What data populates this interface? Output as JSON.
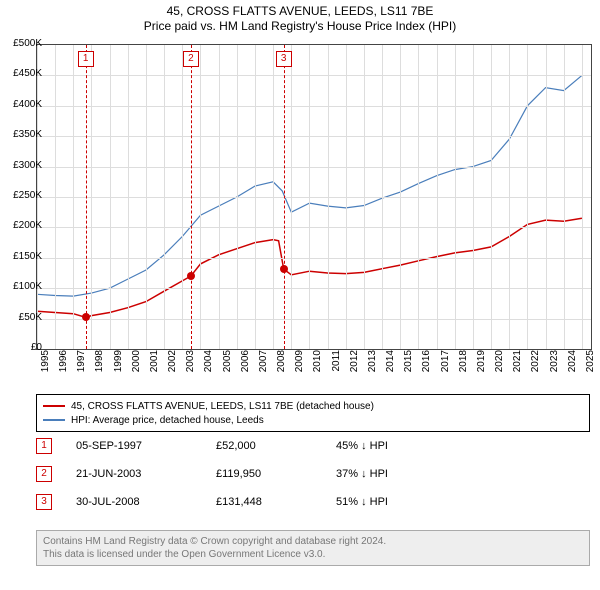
{
  "title": "45, CROSS FLATTS AVENUE, LEEDS, LS11 7BE",
  "subtitle": "Price paid vs. HM Land Registry's House Price Index (HPI)",
  "chart": {
    "type": "line",
    "background_color": "#ffffff",
    "grid_color": "#dddddd",
    "border_color": "#444444",
    "xlim": [
      1995,
      2025.5
    ],
    "ylim": [
      0,
      500000
    ],
    "ytick_step": 50000,
    "ytick_labels": [
      "£0",
      "£50K",
      "£100K",
      "£150K",
      "£200K",
      "£250K",
      "£300K",
      "£350K",
      "£400K",
      "£450K",
      "£500K"
    ],
    "xticks": [
      1995,
      1996,
      1997,
      1998,
      1999,
      2000,
      2001,
      2002,
      2003,
      2004,
      2005,
      2006,
      2007,
      2008,
      2009,
      2010,
      2011,
      2012,
      2013,
      2014,
      2015,
      2016,
      2017,
      2018,
      2019,
      2020,
      2021,
      2022,
      2023,
      2024,
      2025
    ],
    "label_fontsize": 10,
    "series": [
      {
        "name": "property",
        "label": "45, CROSS FLATTS AVENUE, LEEDS, LS11 7BE (detached house)",
        "color": "#cc0000",
        "line_width": 1.5,
        "points": [
          [
            1995,
            62000
          ],
          [
            1996,
            60000
          ],
          [
            1997,
            58000
          ],
          [
            1997.68,
            52000
          ],
          [
            1998,
            55000
          ],
          [
            1999,
            60000
          ],
          [
            2000,
            68000
          ],
          [
            2001,
            78000
          ],
          [
            2002,
            95000
          ],
          [
            2003,
            112000
          ],
          [
            2003.47,
            119950
          ],
          [
            2004,
            140000
          ],
          [
            2005,
            155000
          ],
          [
            2006,
            165000
          ],
          [
            2007,
            175000
          ],
          [
            2008,
            180000
          ],
          [
            2008.3,
            178000
          ],
          [
            2008.58,
            131448
          ],
          [
            2009,
            122000
          ],
          [
            2010,
            128000
          ],
          [
            2011,
            125000
          ],
          [
            2012,
            124000
          ],
          [
            2013,
            126000
          ],
          [
            2014,
            132000
          ],
          [
            2015,
            138000
          ],
          [
            2016,
            145000
          ],
          [
            2017,
            152000
          ],
          [
            2018,
            158000
          ],
          [
            2019,
            162000
          ],
          [
            2020,
            168000
          ],
          [
            2021,
            185000
          ],
          [
            2022,
            205000
          ],
          [
            2023,
            212000
          ],
          [
            2024,
            210000
          ],
          [
            2025,
            215000
          ]
        ]
      },
      {
        "name": "hpi",
        "label": "HPI: Average price, detached house, Leeds",
        "color": "#4a7ebb",
        "line_width": 1.2,
        "points": [
          [
            1995,
            90000
          ],
          [
            1996,
            88000
          ],
          [
            1997,
            87000
          ],
          [
            1998,
            92000
          ],
          [
            1999,
            100000
          ],
          [
            2000,
            115000
          ],
          [
            2001,
            130000
          ],
          [
            2002,
            155000
          ],
          [
            2003,
            185000
          ],
          [
            2004,
            220000
          ],
          [
            2005,
            235000
          ],
          [
            2006,
            250000
          ],
          [
            2007,
            268000
          ],
          [
            2008,
            275000
          ],
          [
            2008.5,
            260000
          ],
          [
            2009,
            225000
          ],
          [
            2010,
            240000
          ],
          [
            2011,
            235000
          ],
          [
            2012,
            232000
          ],
          [
            2013,
            236000
          ],
          [
            2014,
            248000
          ],
          [
            2015,
            258000
          ],
          [
            2016,
            272000
          ],
          [
            2017,
            285000
          ],
          [
            2018,
            295000
          ],
          [
            2019,
            300000
          ],
          [
            2020,
            310000
          ],
          [
            2021,
            345000
          ],
          [
            2022,
            400000
          ],
          [
            2023,
            430000
          ],
          [
            2024,
            425000
          ],
          [
            2025,
            450000
          ]
        ]
      }
    ],
    "transactions": [
      {
        "n": "1",
        "date": "05-SEP-1997",
        "x": 1997.68,
        "price_val": 52000,
        "price": "£52,000",
        "hpi_diff": "45% ↓ HPI"
      },
      {
        "n": "2",
        "date": "21-JUN-2003",
        "x": 2003.47,
        "price_val": 119950,
        "price": "£119,950",
        "hpi_diff": "37% ↓ HPI"
      },
      {
        "n": "3",
        "date": "30-JUL-2008",
        "x": 2008.58,
        "price_val": 131448,
        "price": "£131,448",
        "hpi_diff": "51% ↓ HPI"
      }
    ],
    "txn_line_color": "#cc0000",
    "txn_dot_color": "#cc0000"
  },
  "footer": {
    "l1": "Contains HM Land Registry data © Crown copyright and database right 2024.",
    "l2": "This data is licensed under the Open Government Licence v3.0."
  }
}
